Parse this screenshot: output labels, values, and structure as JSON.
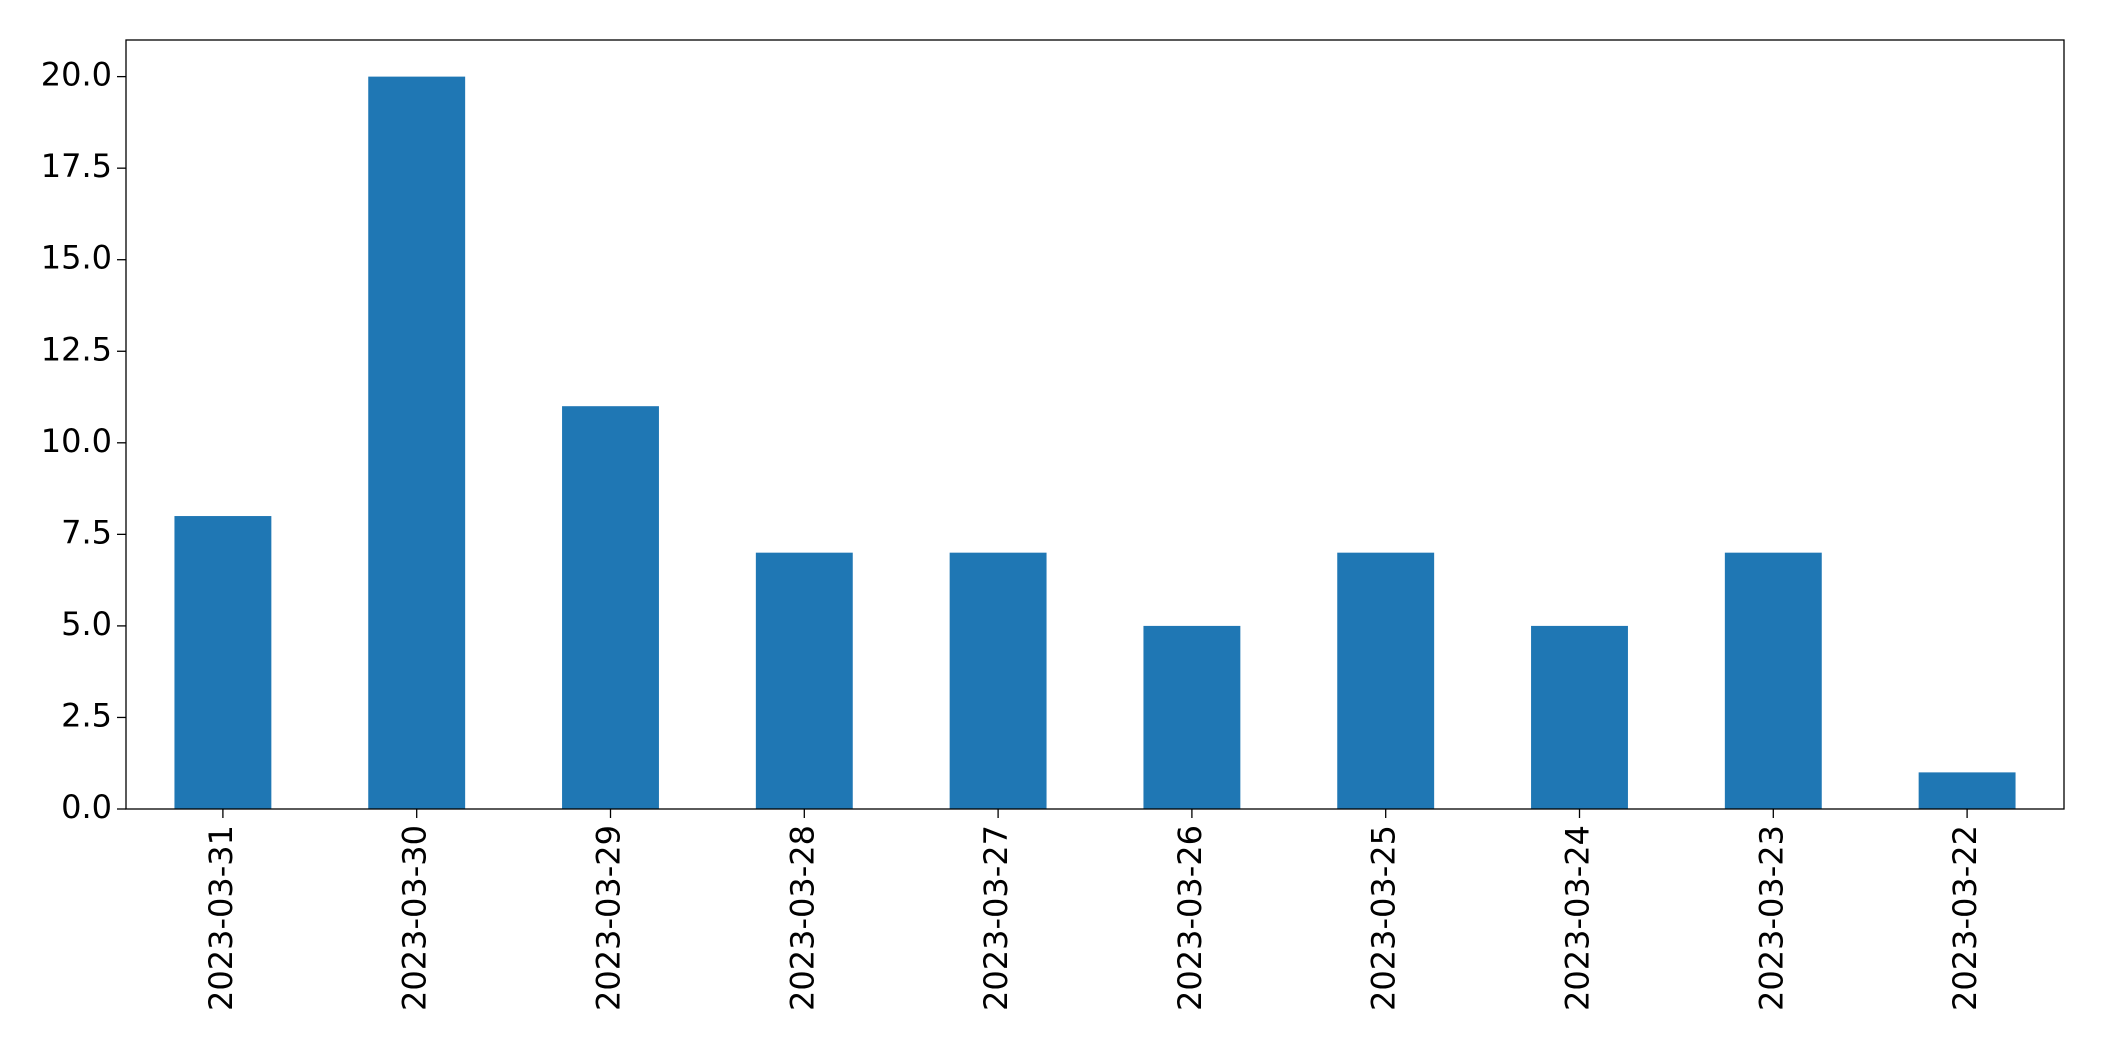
{
  "chart_data": {
    "type": "bar",
    "categories": [
      "2023-03-31",
      "2023-03-30",
      "2023-03-29",
      "2023-03-28",
      "2023-03-27",
      "2023-03-26",
      "2023-03-25",
      "2023-03-24",
      "2023-03-23",
      "2023-03-22"
    ],
    "values": [
      8,
      20,
      11,
      7,
      7,
      5,
      7,
      5,
      7,
      1
    ],
    "color": "#1f77b4",
    "ylim": [
      0,
      21
    ],
    "yticks": [
      {
        "value": 0,
        "label": "0.0"
      },
      {
        "value": 2.5,
        "label": "2.5"
      },
      {
        "value": 5,
        "label": "5.0"
      },
      {
        "value": 7.5,
        "label": "7.5"
      },
      {
        "value": 10,
        "label": "10.0"
      },
      {
        "value": 12.5,
        "label": "12.5"
      },
      {
        "value": 15,
        "label": "15.0"
      },
      {
        "value": 17.5,
        "label": "17.5"
      },
      {
        "value": 20,
        "label": "20.0"
      }
    ],
    "grid": false
  }
}
